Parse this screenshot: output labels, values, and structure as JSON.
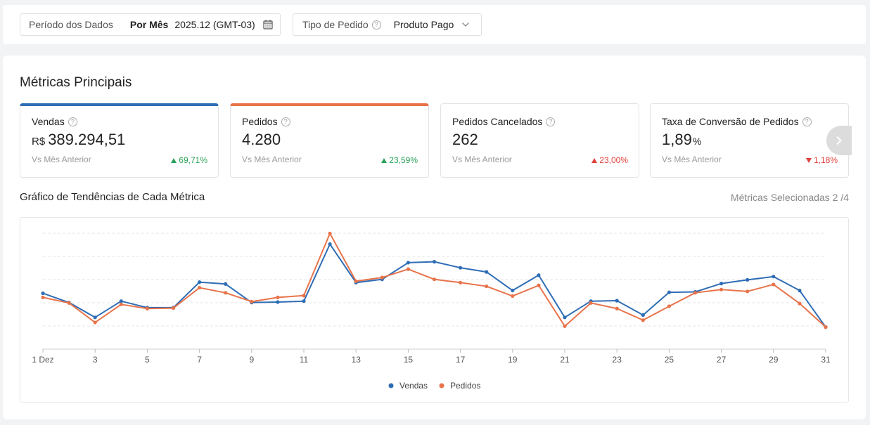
{
  "filters": {
    "period": {
      "label": "Período dos Dados",
      "mode": "Por Mês",
      "value": "2025.12 (GMT-03)"
    },
    "order_type": {
      "label": "Tipo de Pedido",
      "value": "Produto Pago"
    }
  },
  "section_title": "Métricas Principais",
  "cards": [
    {
      "title": "Vendas",
      "currency": "R$",
      "value": "389.294,51",
      "compare": "Vs Mês Anterior",
      "delta": "69,71%"
    },
    {
      "title": "Pedidos",
      "value": "4.280",
      "compare": "Vs Mês Anterior",
      "delta": "23,59%"
    },
    {
      "title": "Pedidos Cancelados",
      "value": "262",
      "compare": "Vs Mês Anterior",
      "delta": "23,00%"
    },
    {
      "title": "Taxa de Conversão de Pedidos",
      "value": "1,89",
      "unit": "%",
      "compare": "Vs Mês Anterior",
      "delta": "1,18%"
    }
  ],
  "trend": {
    "title": "Gráfico de Tendências de Cada Métrica",
    "selected": "Métricas Selecionadas 2 /4"
  },
  "colors": {
    "vendas": "#2f6db5",
    "pedidos": "#e8734a",
    "positive": "#2aa15a",
    "negative": "#e0413d"
  },
  "chart_data": {
    "type": "line",
    "x": [
      "1 Dez",
      "2",
      "3",
      "4",
      "5",
      "6",
      "7",
      "8",
      "9",
      "10",
      "11",
      "12",
      "13",
      "14",
      "15",
      "16",
      "17",
      "18",
      "19",
      "20",
      "21",
      "22",
      "23",
      "24",
      "25",
      "26",
      "27",
      "28",
      "29",
      "30",
      "31"
    ],
    "x_tick_labels": [
      "1 Dez",
      "3",
      "5",
      "7",
      "9",
      "11",
      "13",
      "15",
      "17",
      "19",
      "21",
      "23",
      "25",
      "27",
      "29",
      "31"
    ],
    "ylim": [
      0,
      5
    ],
    "grid": true,
    "legend": "bottom",
    "series": [
      {
        "name": "Vendas",
        "color": "#2f6db5",
        "values": [
          2.41,
          2.01,
          1.37,
          2.07,
          1.79,
          1.79,
          2.89,
          2.81,
          2.01,
          2.03,
          2.07,
          4.53,
          2.87,
          3.01,
          3.73,
          3.77,
          3.51,
          3.33,
          2.53,
          3.19,
          1.37,
          2.07,
          2.09,
          1.47,
          2.45,
          2.47,
          2.83,
          2.99,
          3.13,
          2.53,
          0.95
        ]
      },
      {
        "name": "Pedidos",
        "color": "#e8734a",
        "values": [
          2.23,
          1.99,
          1.15,
          1.93,
          1.75,
          1.77,
          2.65,
          2.43,
          2.05,
          2.23,
          2.31,
          4.99,
          2.93,
          3.09,
          3.45,
          3.01,
          2.87,
          2.71,
          2.29,
          2.75,
          0.99,
          1.99,
          1.75,
          1.25,
          1.85,
          2.43,
          2.57,
          2.49,
          2.79,
          1.97,
          0.95
        ]
      }
    ]
  }
}
